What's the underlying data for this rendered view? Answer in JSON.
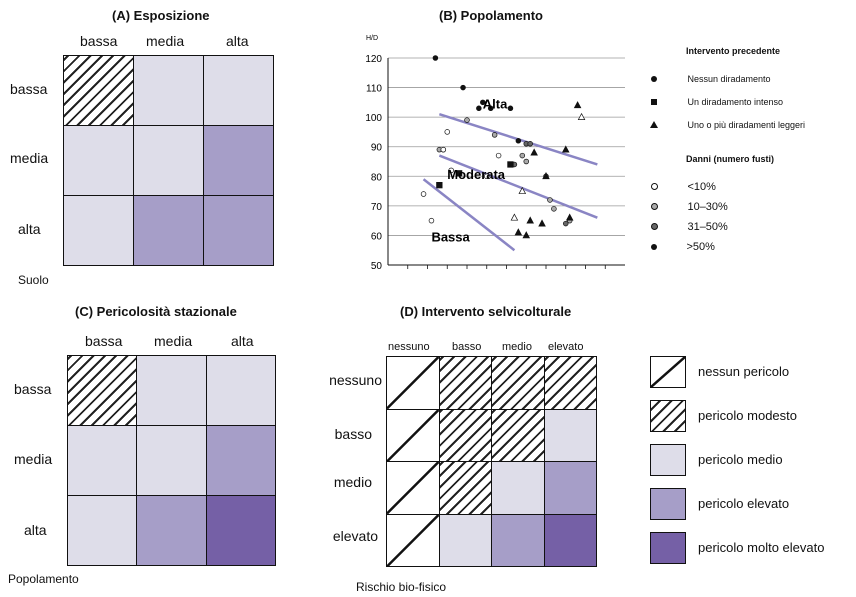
{
  "panelA": {
    "title": "(A) Esposizione",
    "cols": [
      "bassa",
      "media",
      "alta"
    ],
    "rows": [
      "bassa",
      "media",
      "alta"
    ],
    "corner": "Suolo",
    "cells": [
      [
        "hatch",
        "l1",
        "l1"
      ],
      [
        "l1",
        "l1",
        "l2"
      ],
      [
        "l1",
        "l2",
        "l2"
      ]
    ]
  },
  "panelB": {
    "title": "(B) Popolamento",
    "yunit": "H/D",
    "region_labels": [
      "Alta",
      "Moderata",
      "Bassa"
    ],
    "legend_title_1": "Intervento precedente",
    "legend_items_1": [
      "Nessun diradamento",
      "Un diradamento intenso",
      "Uno o più diradamenti leggeri"
    ],
    "legend_title_2": "Danni (numero fusti)",
    "legend_items_2": [
      "<10%",
      "10–30%",
      "31–50%",
      ">50%"
    ],
    "chart_data": {
      "type": "scatter",
      "ylabel": "H/D",
      "ylim": [
        50,
        120
      ],
      "yticks": [
        50,
        60,
        70,
        80,
        90,
        100,
        110,
        120
      ],
      "grid": true,
      "points": [
        {
          "x": 0.32,
          "y": 120,
          "m": "circle",
          "d": 4
        },
        {
          "x": 0.39,
          "y": 110,
          "m": "circle",
          "d": 4
        },
        {
          "x": 0.43,
          "y": 103,
          "m": "circle",
          "d": 4
        },
        {
          "x": 0.44,
          "y": 105,
          "m": "circle",
          "d": 4
        },
        {
          "x": 0.46,
          "y": 103,
          "m": "circle",
          "d": 4
        },
        {
          "x": 0.51,
          "y": 103,
          "m": "circle",
          "d": 4
        },
        {
          "x": 0.53,
          "y": 92,
          "m": "circle",
          "d": 4
        },
        {
          "x": 0.55,
          "y": 91,
          "m": "circle",
          "d": 3
        },
        {
          "x": 0.56,
          "y": 91,
          "m": "circle",
          "d": 3
        },
        {
          "x": 0.52,
          "y": 84,
          "m": "circle",
          "d": 3
        },
        {
          "x": 0.54,
          "y": 87,
          "m": "circle",
          "d": 2
        },
        {
          "x": 0.55,
          "y": 85,
          "m": "circle",
          "d": 2
        },
        {
          "x": 0.4,
          "y": 99,
          "m": "circle",
          "d": 2
        },
        {
          "x": 0.47,
          "y": 94,
          "m": "circle",
          "d": 2
        },
        {
          "x": 0.33,
          "y": 89,
          "m": "circle",
          "d": 2
        },
        {
          "x": 0.34,
          "y": 89,
          "m": "circle",
          "d": 2
        },
        {
          "x": 0.35,
          "y": 95,
          "m": "circle",
          "d": 1
        },
        {
          "x": 0.36,
          "y": 82,
          "m": "circle",
          "d": 1
        },
        {
          "x": 0.45,
          "y": 80,
          "m": "circle",
          "d": 1
        },
        {
          "x": 0.48,
          "y": 87,
          "m": "circle",
          "d": 1
        },
        {
          "x": 0.29,
          "y": 74,
          "m": "circle",
          "d": 1
        },
        {
          "x": 0.31,
          "y": 65,
          "m": "circle",
          "d": 1
        },
        {
          "x": 0.34,
          "y": 89,
          "m": "circle",
          "d": 1
        },
        {
          "x": 0.61,
          "y": 72,
          "m": "circle",
          "d": 2
        },
        {
          "x": 0.62,
          "y": 69,
          "m": "circle",
          "d": 2
        },
        {
          "x": 0.6,
          "y": 80,
          "m": "circle",
          "d": 2
        },
        {
          "x": 0.66,
          "y": 65,
          "m": "circle",
          "d": 2
        },
        {
          "x": 0.65,
          "y": 64,
          "m": "circle",
          "d": 3
        },
        {
          "x": 0.33,
          "y": 77,
          "m": "square",
          "d": 4
        },
        {
          "x": 0.38,
          "y": 81,
          "m": "square",
          "d": 4
        },
        {
          "x": 0.51,
          "y": 84,
          "m": "square",
          "d": 4
        },
        {
          "x": 0.53,
          "y": 61,
          "m": "triangle",
          "d": 4
        },
        {
          "x": 0.55,
          "y": 60,
          "m": "triangle",
          "d": 4
        },
        {
          "x": 0.56,
          "y": 65,
          "m": "triangle",
          "d": 4
        },
        {
          "x": 0.59,
          "y": 64,
          "m": "triangle",
          "d": 4
        },
        {
          "x": 0.57,
          "y": 88,
          "m": "triangle",
          "d": 4
        },
        {
          "x": 0.6,
          "y": 80,
          "m": "triangle",
          "d": 4
        },
        {
          "x": 0.65,
          "y": 89,
          "m": "triangle",
          "d": 4
        },
        {
          "x": 0.66,
          "y": 66,
          "m": "triangle",
          "d": 4
        },
        {
          "x": 0.68,
          "y": 104,
          "m": "triangle",
          "d": 4
        },
        {
          "x": 0.69,
          "y": 100,
          "m": "triangle",
          "d": 1
        },
        {
          "x": 0.54,
          "y": 75,
          "m": "triangle",
          "d": 1
        },
        {
          "x": 0.52,
          "y": 66,
          "m": "triangle",
          "d": 1
        }
      ],
      "lines": [
        {
          "from": [
            0.33,
            101
          ],
          "to": [
            0.73,
            84
          ]
        },
        {
          "from": [
            0.33,
            87
          ],
          "to": [
            0.73,
            66
          ]
        },
        {
          "from": [
            0.29,
            79
          ],
          "to": [
            0.52,
            55
          ]
        }
      ]
    }
  },
  "panelC": {
    "title": "(C) Pericolosità stazionale",
    "cols": [
      "bassa",
      "media",
      "alta"
    ],
    "rows": [
      "bassa",
      "media",
      "alta"
    ],
    "corner": "Popolamento",
    "cells": [
      [
        "hatch",
        "l1",
        "l1"
      ],
      [
        "l1",
        "l1",
        "l2"
      ],
      [
        "l1",
        "l2",
        "l3"
      ]
    ]
  },
  "panelD": {
    "title": "(D) Intervento selvicolturale",
    "cols": [
      "nessuno",
      "basso",
      "medio",
      "elevato"
    ],
    "rows": [
      "nessuno",
      "basso",
      "medio",
      "elevato"
    ],
    "corner": "Rischio bio-fisico",
    "cells": [
      [
        "none",
        "hatch",
        "hatch",
        "hatch"
      ],
      [
        "none",
        "hatch",
        "hatch",
        "l1"
      ],
      [
        "none",
        "hatch",
        "l1",
        "l2"
      ],
      [
        "none",
        "l1",
        "l2",
        "l3"
      ]
    ]
  },
  "legend": {
    "items": [
      {
        "key": "none",
        "label": "nessun pericolo"
      },
      {
        "key": "hatch",
        "label": "pericolo modesto"
      },
      {
        "key": "l1",
        "label": "pericolo medio"
      },
      {
        "key": "l2",
        "label": "pericolo elevato"
      },
      {
        "key": "l3",
        "label": "pericolo molto elevato"
      }
    ]
  },
  "colors": {
    "l1": "#dedde9",
    "l2": "#a69ec8",
    "l3": "#7560a6",
    "line": "#8a85c4"
  }
}
